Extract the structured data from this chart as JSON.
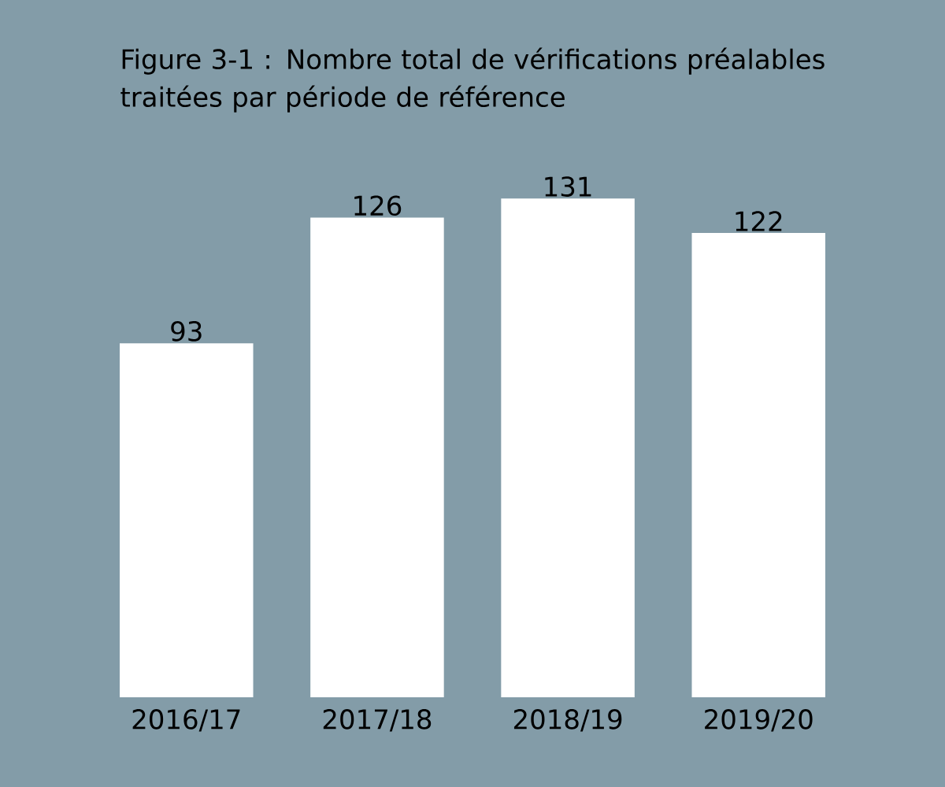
{
  "chart_data": {
    "type": "bar",
    "title": "Figure 3-1 : Nombre total de vérifications préalables traitées par période de référence",
    "categories": [
      "2016/17",
      "2017/18",
      "2018/19",
      "2019/20"
    ],
    "values": [
      93,
      126,
      131,
      122
    ],
    "color": "#ffffff",
    "data_labels": true
  }
}
